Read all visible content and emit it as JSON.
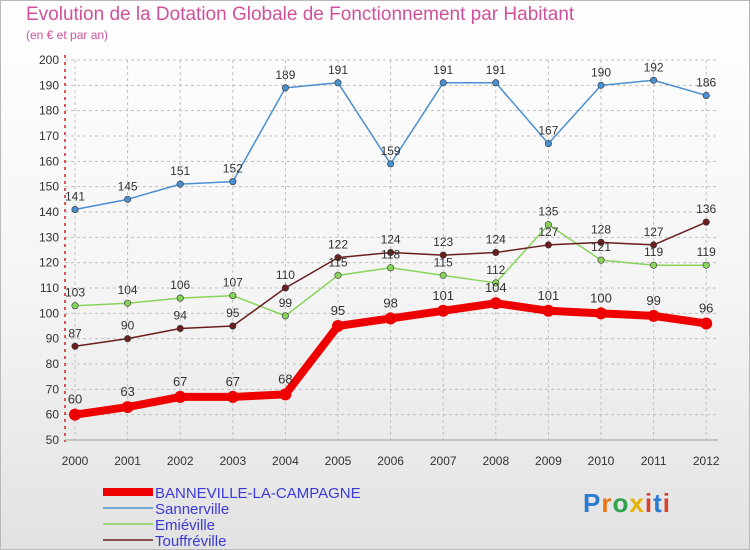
{
  "title": "Evolution de la Dotation Globale de Fonctionnement par Habitant",
  "subtitle": "(en € et par an)",
  "logo_text": "Proxiti",
  "colors": {
    "BANNEVILLE-LA-CAMPAGNE": "#ee0000",
    "Sannerville": "#4a8fd0",
    "Emiéville": "#88d45a",
    "Touffréville": "#6b1e1e"
  },
  "chart_data": {
    "type": "line",
    "x": [
      "2000",
      "2001",
      "2002",
      "2003",
      "2004",
      "2005",
      "2006",
      "2007",
      "2008",
      "2009",
      "2010",
      "2011",
      "2012"
    ],
    "ylim": [
      50,
      200
    ],
    "yticks": [
      50,
      60,
      70,
      80,
      90,
      100,
      110,
      120,
      130,
      140,
      150,
      160,
      170,
      180,
      190,
      200
    ],
    "grid": true,
    "legend": "bottom-left",
    "series": [
      {
        "name": "BANNEVILLE-LA-CAMPAGNE",
        "values": [
          60,
          63,
          67,
          67,
          68,
          95,
          98,
          101,
          104,
          101,
          100,
          99,
          96
        ]
      },
      {
        "name": "Sannerville",
        "values": [
          141,
          145,
          151,
          152,
          189,
          191,
          159,
          191,
          191,
          167,
          190,
          192,
          186
        ]
      },
      {
        "name": "Emiéville",
        "values": [
          103,
          104,
          106,
          107,
          99,
          115,
          118,
          115,
          112,
          135,
          121,
          119,
          119
        ]
      },
      {
        "name": "Touffréville",
        "values": [
          87,
          90,
          94,
          95,
          110,
          122,
          124,
          123,
          124,
          127,
          128,
          127,
          136
        ]
      }
    ]
  }
}
